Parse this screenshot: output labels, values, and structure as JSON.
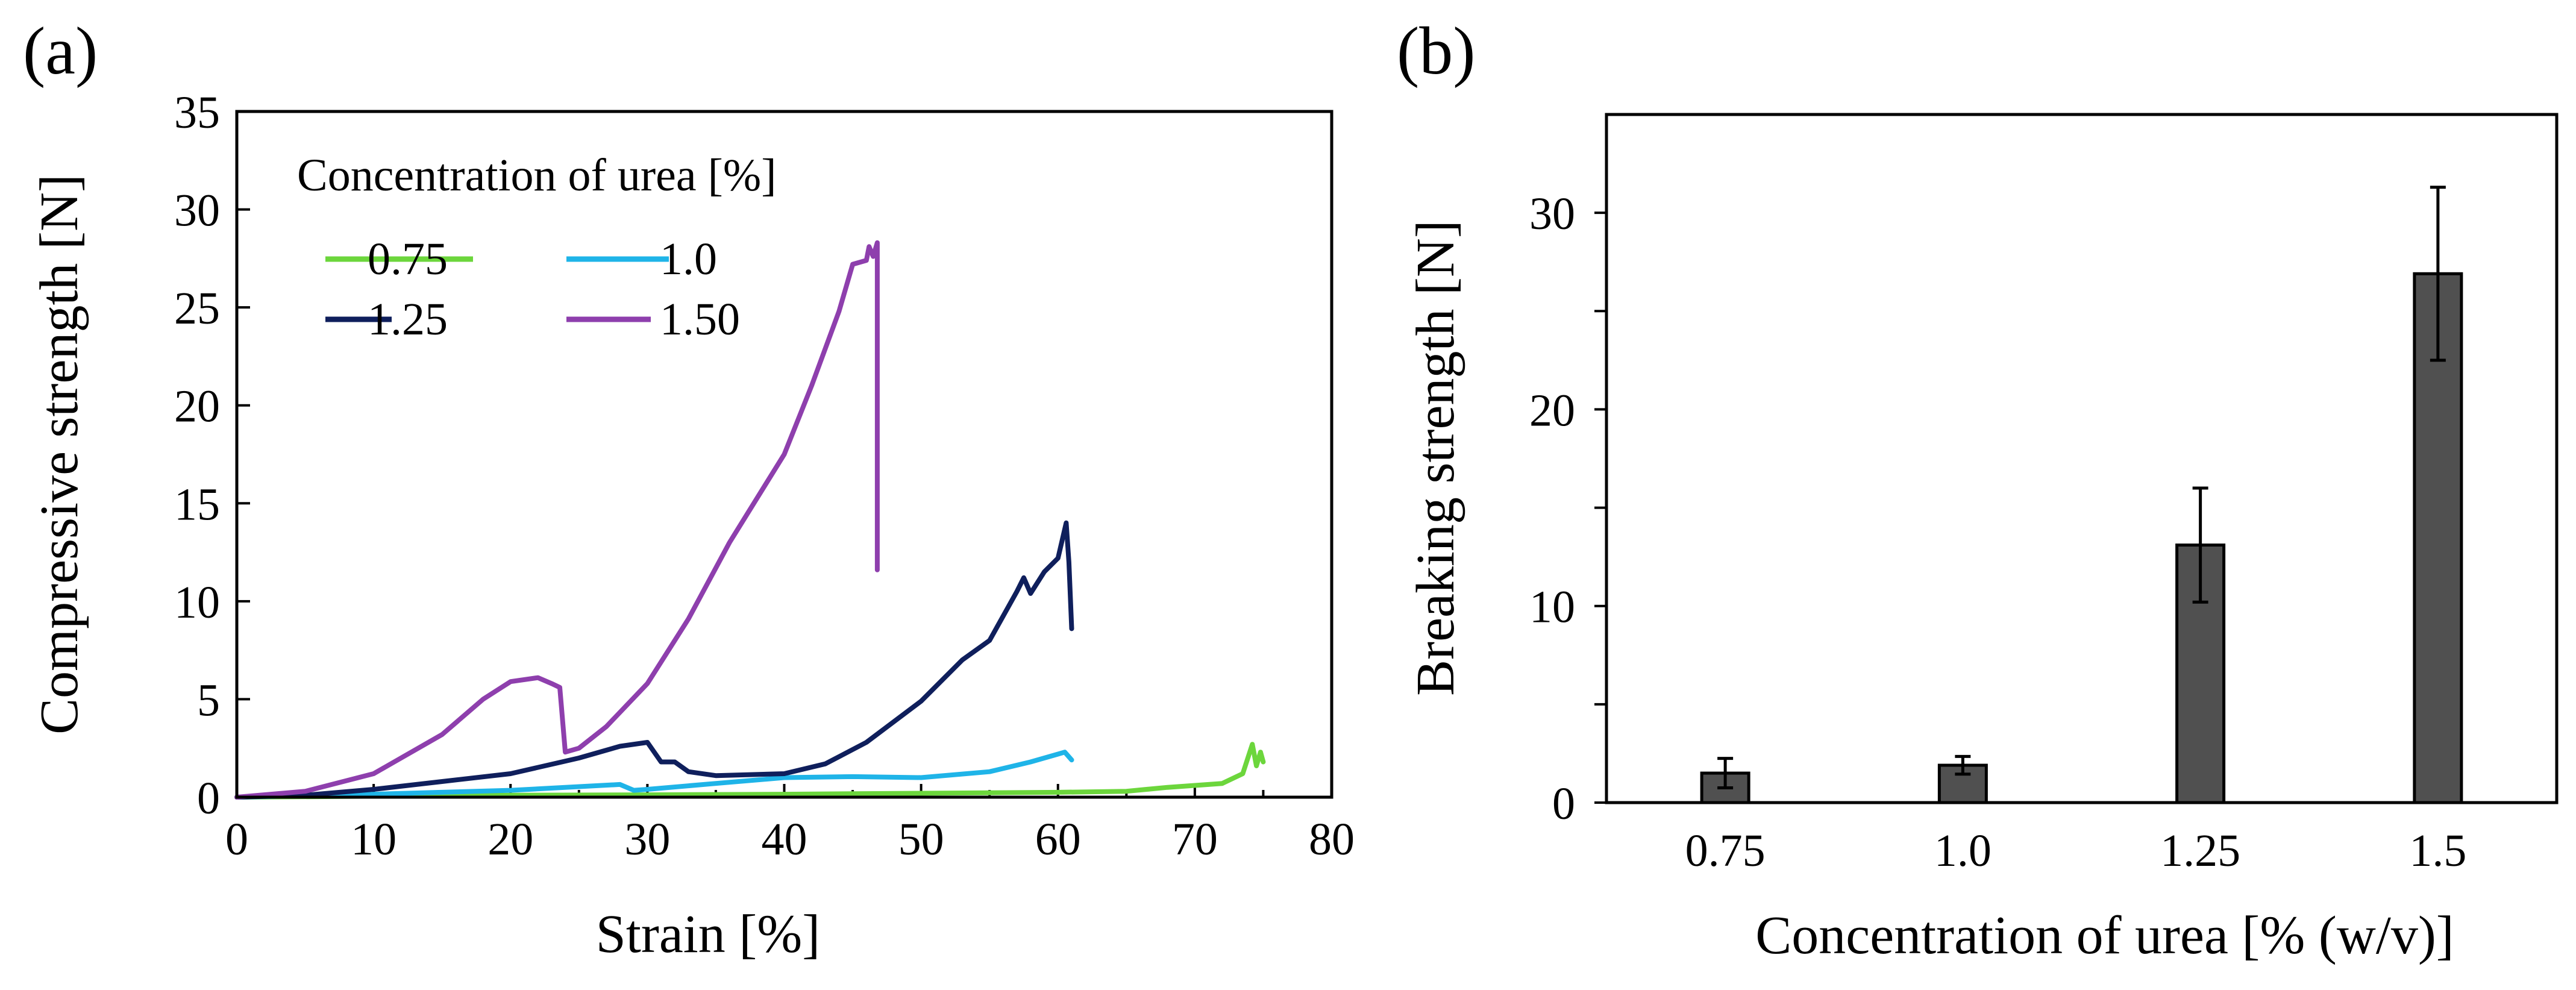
{
  "chart_data": [
    {
      "panel": "(a)",
      "type": "line",
      "xlabel": "Strain [%]",
      "ylabel": "Compressive strength [N]",
      "xlim": [
        0,
        80
      ],
      "ylim": [
        0,
        35
      ],
      "xticks": [
        0,
        10,
        20,
        30,
        40,
        50,
        60,
        70,
        80
      ],
      "yticks": [
        0,
        5,
        10,
        15,
        20,
        25,
        30,
        35
      ],
      "grid": false,
      "legend": {
        "title": "Concentration of urea [%]",
        "placement": "top-left"
      },
      "series": [
        {
          "name": "0.75",
          "color": "#6cd63c",
          "x": [
            0,
            10,
            20,
            30,
            40,
            50,
            60,
            65,
            68,
            70,
            72,
            73.5,
            74.2,
            74.5,
            74.8,
            75
          ],
          "y": [
            0,
            0.05,
            0.1,
            0.12,
            0.15,
            0.2,
            0.25,
            0.3,
            0.5,
            0.6,
            0.7,
            1.2,
            2.7,
            1.6,
            2.3,
            1.8
          ]
        },
        {
          "name": "1.0",
          "color": "#1fb4e8",
          "x": [
            0,
            10,
            20,
            28,
            29,
            30,
            35,
            40,
            45,
            50,
            55,
            58,
            60,
            60.5,
            61
          ],
          "y": [
            0,
            0.15,
            0.35,
            0.65,
            0.35,
            0.4,
            0.7,
            1.0,
            1.05,
            1.0,
            1.3,
            1.8,
            2.2,
            2.3,
            1.9
          ]
        },
        {
          "name": "1.25",
          "color": "#0f1f5c",
          "x": [
            0,
            5,
            10,
            15,
            20,
            25,
            28,
            30,
            31,
            32,
            33,
            35,
            40,
            43,
            46,
            50,
            53,
            55,
            57,
            57.5,
            58,
            59,
            60,
            60.6,
            60.8,
            61
          ],
          "y": [
            0,
            0.1,
            0.4,
            0.8,
            1.2,
            2.0,
            2.6,
            2.8,
            1.8,
            1.8,
            1.3,
            1.1,
            1.2,
            1.7,
            2.8,
            4.9,
            7.0,
            8.0,
            10.5,
            11.2,
            10.4,
            11.5,
            12.2,
            14.0,
            12.0,
            8.6
          ]
        },
        {
          "name": "1.50",
          "color": "#8e3fad",
          "x": [
            0,
            5,
            10,
            15,
            18,
            20,
            22,
            23,
            23.6,
            24,
            25,
            27,
            30,
            33,
            36,
            40,
            42,
            44,
            45,
            46,
            46.2,
            46.5,
            46.8,
            46.8
          ],
          "y": [
            0,
            0.3,
            1.2,
            3.2,
            5.0,
            5.9,
            6.1,
            5.8,
            5.6,
            2.3,
            2.5,
            3.6,
            5.8,
            9.1,
            13.0,
            17.5,
            21.0,
            24.8,
            27.2,
            27.4,
            28.1,
            27.6,
            28.3,
            11.6
          ]
        }
      ]
    },
    {
      "panel": "(b)",
      "type": "bar",
      "xlabel": "Concentration of urea [% (w/v)]",
      "ylabel": "Breaking strength [N]",
      "ylim": [
        0,
        35
      ],
      "yticks": [
        0,
        10,
        20,
        30
      ],
      "grid": false,
      "bar_color": "#505050",
      "categories": [
        "0.75",
        "1.0",
        "1.25",
        "1.5"
      ],
      "values": [
        1.5,
        1.9,
        13.1,
        26.9
      ],
      "errors": [
        0.75,
        0.45,
        2.9,
        4.4
      ]
    }
  ]
}
